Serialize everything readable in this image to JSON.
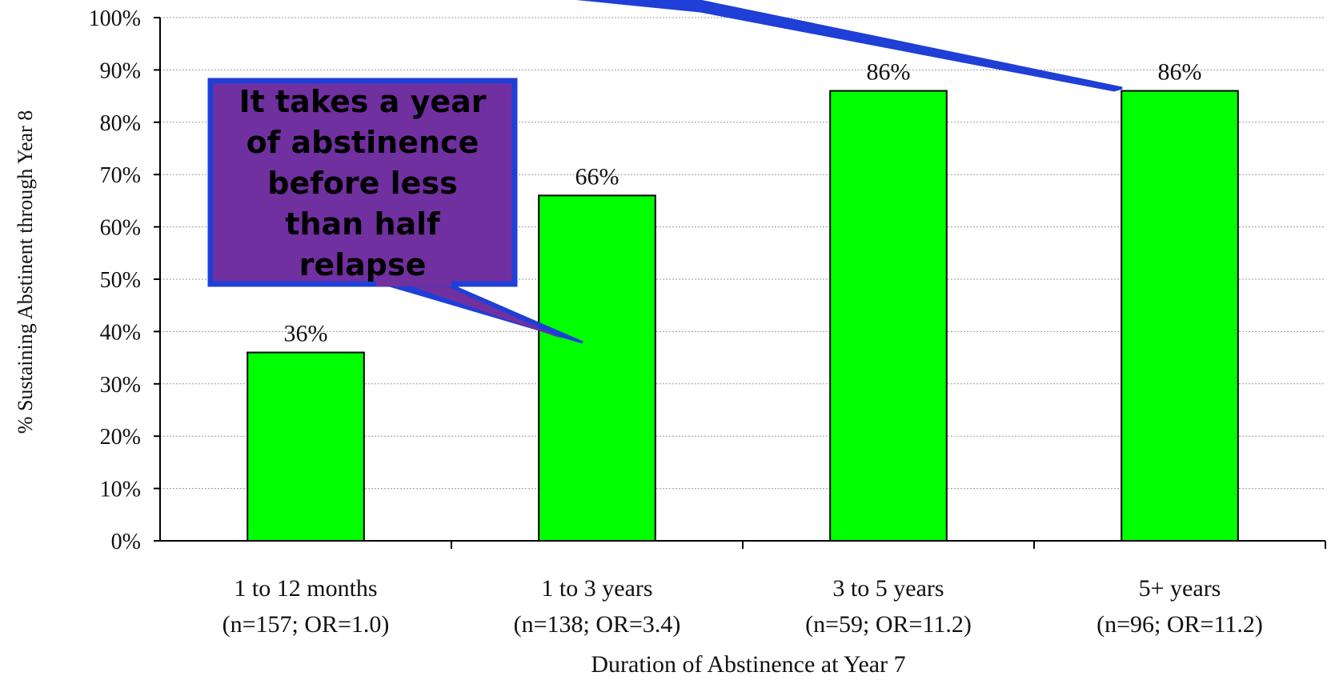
{
  "chart_data": {
    "type": "bar",
    "ylabel": "% Sustaining Abstinent through Year 8",
    "xlabel": "Duration of Abstinence at Year 7",
    "ylim": [
      0,
      100
    ],
    "y_ticks": [
      "0%",
      "10%",
      "20%",
      "30%",
      "40%",
      "50%",
      "60%",
      "70%",
      "80%",
      "90%",
      "100%"
    ],
    "grid": true,
    "categories": [
      {
        "line1": "1 to 12 months",
        "line2": "(n=157; OR=1.0)"
      },
      {
        "line1": "1 to 3 years",
        "line2": "(n=138; OR=3.4)"
      },
      {
        "line1": "3 to 5 years",
        "line2": "(n=59; OR=11.2)"
      },
      {
        "line1": "5+ years",
        "line2": "(n=96; OR=11.2)"
      }
    ],
    "values": [
      36,
      66,
      86,
      86
    ],
    "data_labels": [
      "36%",
      "66%",
      "86%",
      "86%"
    ],
    "bar_color": "#00ff00",
    "annotations": [
      {
        "text_lines": [
          "It takes a year",
          "of abstinence",
          "before less",
          "than half",
          "relapse"
        ],
        "box_color": "#7030a0",
        "border_color": "#1f3fd6",
        "points_to_category": "1 to 3 years"
      }
    ]
  }
}
